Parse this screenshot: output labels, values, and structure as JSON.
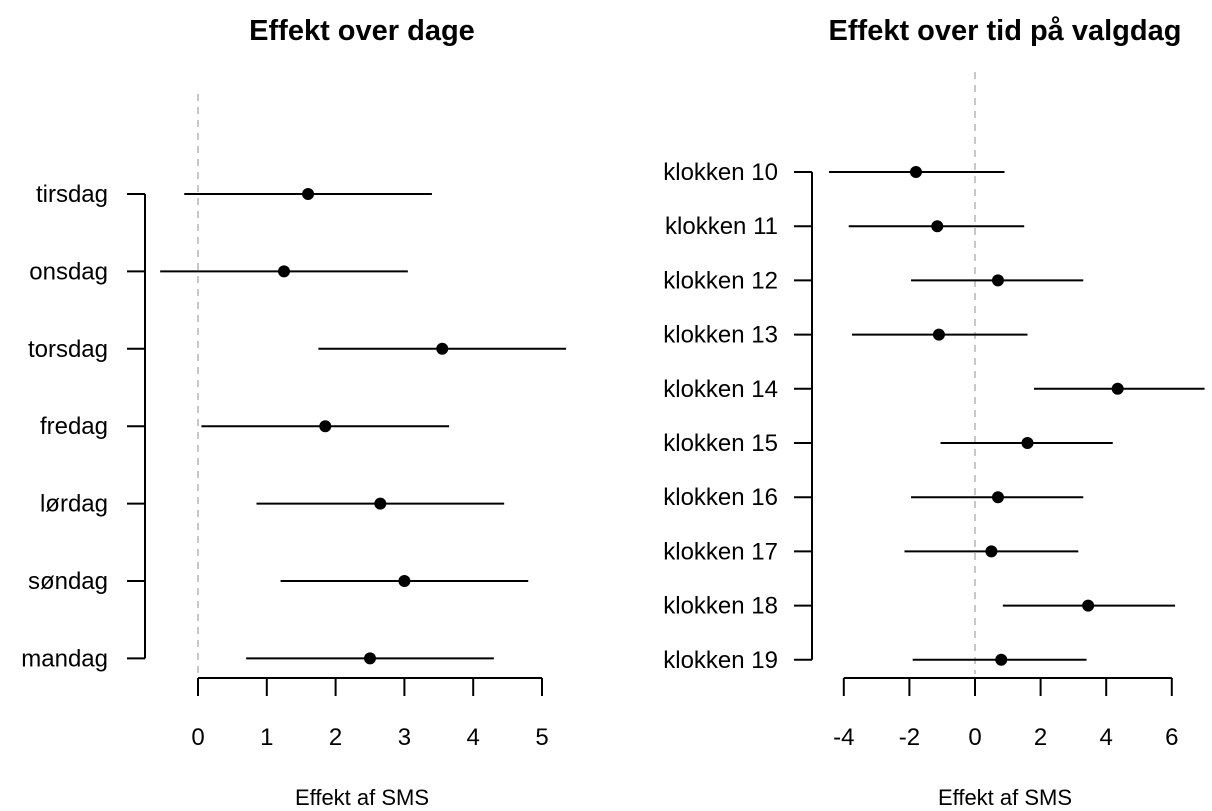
{
  "chart_data": [
    {
      "type": "dot-interval",
      "title": "Effekt over dage",
      "xlabel": "Effekt af SMS",
      "ylabel": "",
      "xlim": [
        -0.8,
        5.4
      ],
      "xticks": [
        0,
        1,
        2,
        3,
        4,
        5
      ],
      "xtick_labels": [
        "0",
        "1",
        "2",
        "3",
        "4",
        "5"
      ],
      "reference_x": 0,
      "reference_style": "dashed grey",
      "categories": [
        "tirsdag",
        "onsdag",
        "torsdag",
        "fredag",
        "lørdag",
        "søndag",
        "mandag"
      ],
      "estimates": [
        1.6,
        1.25,
        3.55,
        1.85,
        2.65,
        3.0,
        2.5
      ],
      "lower": [
        -0.2,
        -0.55,
        1.75,
        0.05,
        0.85,
        1.2,
        0.7
      ],
      "upper": [
        3.4,
        3.05,
        5.35,
        3.65,
        4.45,
        4.8,
        4.3
      ]
    },
    {
      "type": "dot-interval",
      "title": "Effekt over tid på valgdag",
      "xlabel": "Effekt af SMS",
      "ylabel": "",
      "xlim": [
        -4.5,
        7.0
      ],
      "xticks": [
        -4,
        -2,
        0,
        2,
        4,
        6
      ],
      "xtick_labels": [
        "-4",
        "-2",
        "0",
        "2",
        "4",
        "6"
      ],
      "reference_x": 0,
      "reference_style": "dashed grey",
      "categories": [
        "klokken 10",
        "klokken 11",
        "klokken 12",
        "klokken 13",
        "klokken 14",
        "klokken 15",
        "klokken 16",
        "klokken 17",
        "klokken 18",
        "klokken 19"
      ],
      "estimates": [
        -1.8,
        -1.15,
        0.7,
        -1.1,
        4.35,
        1.6,
        0.7,
        0.5,
        3.45,
        0.8
      ],
      "lower": [
        -4.45,
        -3.85,
        -1.95,
        -3.75,
        1.8,
        -1.05,
        -1.95,
        -2.15,
        0.85,
        -1.9
      ],
      "upper": [
        0.9,
        1.5,
        3.3,
        1.6,
        7.0,
        4.2,
        3.3,
        3.15,
        6.1,
        3.4
      ]
    }
  ]
}
